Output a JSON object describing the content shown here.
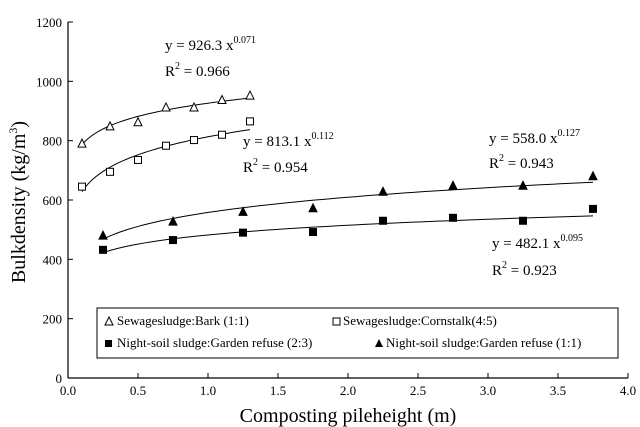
{
  "chart_data": {
    "type": "scatter",
    "xlabel": "Composting pileheight (m)",
    "ylabel_main": "Bulkdensity (kg/m",
    "ylabel_sup": "3",
    "ylabel_close": ")",
    "xlim": [
      0,
      4.0
    ],
    "ylim": [
      0,
      1200
    ],
    "x_ticks": [
      "0.0",
      "0.5",
      "1.0",
      "1.5",
      "2.0",
      "2.5",
      "3.0",
      "3.5",
      "4.0"
    ],
    "y_ticks": [
      "0",
      "200",
      "400",
      "600",
      "800",
      "1000",
      "1200"
    ],
    "grid": false,
    "legend_placement": "bottom",
    "series": [
      {
        "name": "Sewagesludge:Bark (1:1)",
        "marker": "open-triangle",
        "x": [
          0.1,
          0.3,
          0.5,
          0.7,
          0.9,
          1.1,
          1.3
        ],
        "y": [
          790,
          848,
          862,
          912,
          912,
          937,
          952
        ],
        "fit": {
          "a": 926.3,
          "b": 0.071,
          "x_range": [
            0.1,
            1.3
          ]
        },
        "eq_main": "y = 926.3 x",
        "eq_exp": "0.071",
        "r2_label": "R",
        "r2_sup": "2",
        "r2_value": " = 0.966"
      },
      {
        "name": "Sewagesludge:Cornstalk(4:5)",
        "marker": "open-square",
        "x": [
          0.1,
          0.3,
          0.5,
          0.7,
          0.9,
          1.1,
          1.3
        ],
        "y": [
          645,
          695,
          735,
          783,
          802,
          820,
          865
        ],
        "fit": {
          "a": 813.1,
          "b": 0.112,
          "x_range": [
            0.1,
            1.3
          ]
        },
        "eq_main": "y = 813.1 x",
        "eq_exp": "0.112",
        "r2_label": "R",
        "r2_sup": "2",
        "r2_value": " = 0.954"
      },
      {
        "name": "Night-soil sludge:Garden refuse (2:3)",
        "marker": "filled-square",
        "x": [
          0.25,
          0.75,
          1.25,
          1.75,
          2.25,
          2.75,
          3.25,
          3.75
        ],
        "y": [
          432,
          465,
          490,
          492,
          530,
          540,
          530,
          570
        ],
        "fit": {
          "a": 482.1,
          "b": 0.095,
          "x_range": [
            0.25,
            3.75
          ]
        },
        "eq_main": "y = 482.1 x",
        "eq_exp": "0.095",
        "r2_label": "R",
        "r2_sup": "2",
        "r2_value": " = 0.923"
      },
      {
        "name": "Night-soil sludge:Garden refuse (1:1)",
        "marker": "filled-triangle",
        "x": [
          0.25,
          0.75,
          1.25,
          1.75,
          2.25,
          2.75,
          3.25,
          3.75
        ],
        "y": [
          480,
          527,
          560,
          572,
          628,
          648,
          648,
          680
        ],
        "fit": {
          "a": 558.0,
          "b": 0.127,
          "x_range": [
            0.25,
            3.75
          ]
        },
        "eq_main": "y = 558.0 x",
        "eq_exp": "0.127",
        "r2_label": "R",
        "r2_sup": "2",
        "r2_value": " = 0.943"
      }
    ]
  }
}
